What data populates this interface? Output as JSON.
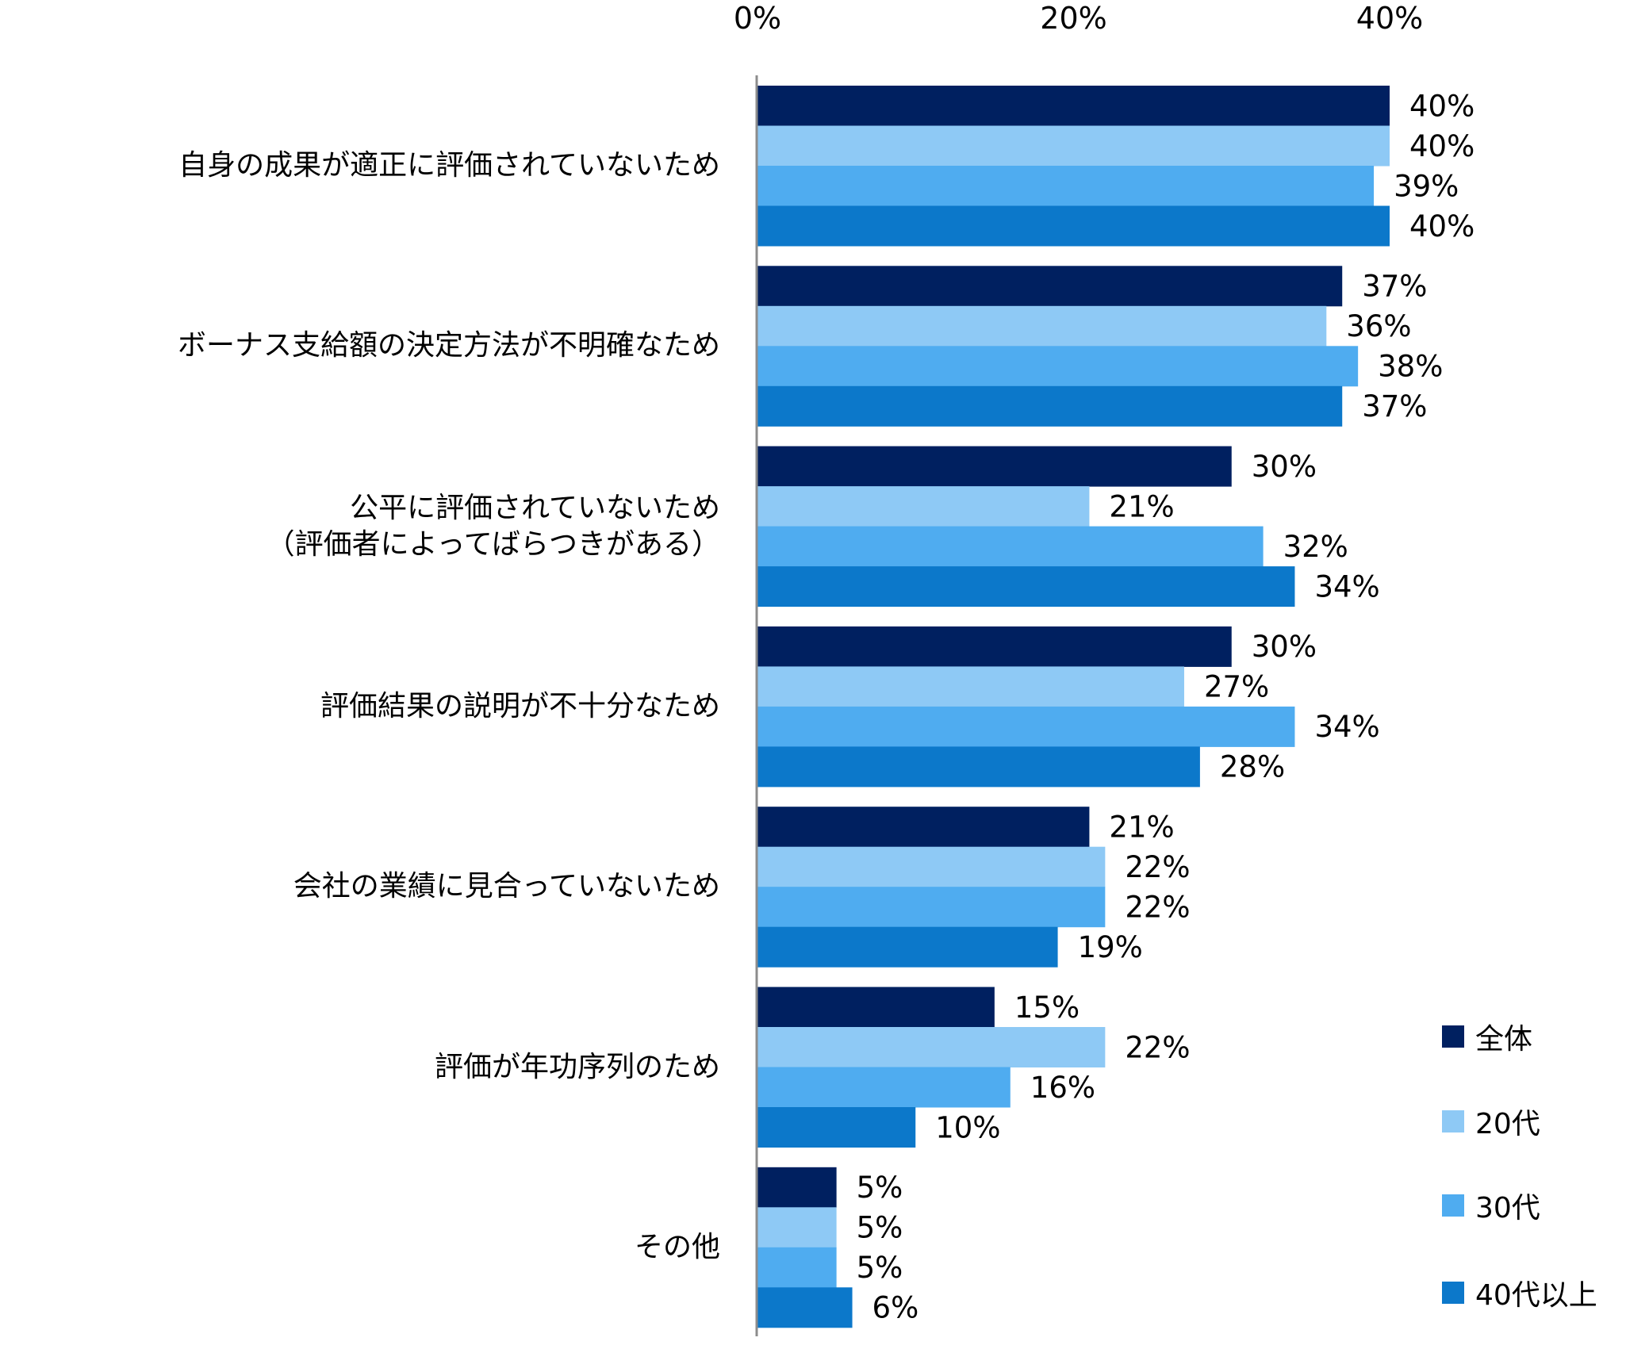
{
  "chart_data": {
    "type": "bar",
    "orientation": "horizontal",
    "title": "",
    "xlabel": "",
    "ylabel": "",
    "xlim": [
      0,
      40
    ],
    "x_ticks": [
      "0%",
      "20%",
      "40%"
    ],
    "x_tick_values": [
      0,
      20,
      40
    ],
    "grid": false,
    "legend_position": "bottom-right",
    "categories": [
      "自身の成果が適正に評価されていないため",
      "ボーナス支給額の決定方法が不明確なため",
      "公平に評価されていないため\n（評価者によってばらつきがある）",
      "評価結果の説明が不十分なため",
      "会社の業績に見合っていないため",
      "評価が年功序列のため",
      "その他"
    ],
    "series": [
      {
        "name": "全体",
        "color": "#002060",
        "values": [
          40,
          37,
          30,
          30,
          21,
          15,
          5
        ]
      },
      {
        "name": "20代",
        "color": "#8EC9F5",
        "values": [
          40,
          36,
          21,
          27,
          22,
          22,
          5
        ]
      },
      {
        "name": "30代",
        "color": "#4FACF0",
        "values": [
          39,
          38,
          32,
          34,
          22,
          16,
          5
        ]
      },
      {
        "name": "40代以上",
        "color": "#0C78CA",
        "values": [
          40,
          37,
          34,
          28,
          19,
          10,
          6
        ]
      }
    ],
    "value_suffix": "%"
  }
}
